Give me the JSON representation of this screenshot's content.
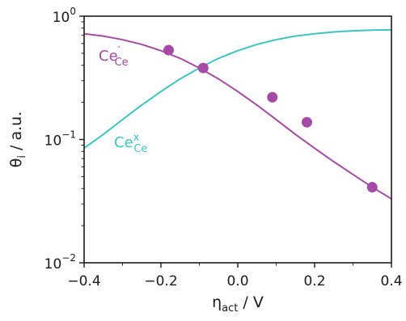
{
  "chart_data": {
    "type": "line",
    "xlabel": "η_act / V",
    "ylabel": "θ_i / a.u.",
    "xlim": [
      -0.4,
      0.4
    ],
    "ylim": [
      0.01,
      1
    ],
    "yscale": "log",
    "grid": false,
    "x_ticks": [
      "−0.4",
      "−0.2",
      "0.0",
      "0.2",
      "0.4"
    ],
    "y_ticks": [
      {
        "base": "10",
        "exp": "−2"
      },
      {
        "base": "10",
        "exp": "−1"
      },
      {
        "base": "10",
        "exp": "0"
      }
    ],
    "series": [
      {
        "name": "Ce′_Ce",
        "label_base": "Ce",
        "label_sup": "′",
        "label_sub": "Ce",
        "color": "#a54aa5",
        "kind": "line",
        "x": [
          -0.4,
          -0.35,
          -0.3,
          -0.25,
          -0.2,
          -0.15,
          -0.1,
          -0.05,
          0.0,
          0.05,
          0.1,
          0.15,
          0.2,
          0.25,
          0.3,
          0.35,
          0.4
        ],
        "y": [
          0.72,
          0.69,
          0.645,
          0.59,
          0.525,
          0.455,
          0.38,
          0.31,
          0.245,
          0.19,
          0.145,
          0.11,
          0.085,
          0.066,
          0.052,
          0.041,
          0.033
        ]
      },
      {
        "name": "Ce^x_Ce",
        "label_base": "Ce",
        "label_sup": "x",
        "label_sub": "Ce",
        "color": "#3cc4c4",
        "kind": "line",
        "x": [
          -0.4,
          -0.35,
          -0.3,
          -0.25,
          -0.2,
          -0.15,
          -0.1,
          -0.05,
          0.0,
          0.05,
          0.1,
          0.15,
          0.2,
          0.25,
          0.3,
          0.35,
          0.4
        ],
        "y": [
          0.085,
          0.11,
          0.145,
          0.19,
          0.245,
          0.31,
          0.38,
          0.455,
          0.525,
          0.59,
          0.645,
          0.69,
          0.72,
          0.745,
          0.76,
          0.77,
          0.775
        ]
      },
      {
        "name": "Ce′_Ce data",
        "color": "#a54aa5",
        "kind": "scatter",
        "x": [
          -0.18,
          -0.09,
          0.09,
          0.18,
          0.35
        ],
        "y": [
          0.53,
          0.38,
          0.22,
          0.138,
          0.041
        ]
      }
    ]
  }
}
